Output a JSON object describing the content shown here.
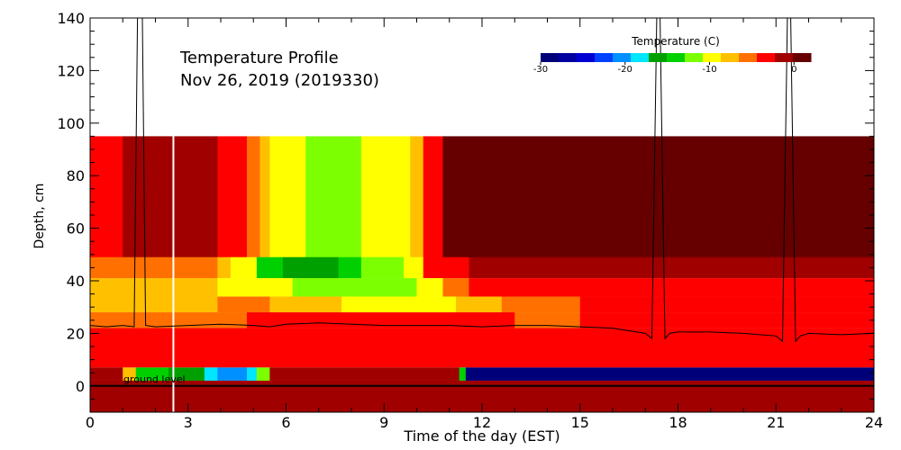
{
  "chart_data": {
    "type": "heatmap",
    "title": "Temperature Profile",
    "subtitle": "Nov 26, 2019 (2019330)",
    "xlabel": "Time of the day (EST)",
    "ylabel": "Depth, cm",
    "xlim": [
      0,
      24
    ],
    "ylim": [
      -10,
      140
    ],
    "x_ticks": [
      0,
      3,
      6,
      9,
      12,
      15,
      18,
      21,
      24
    ],
    "y_ticks": [
      0,
      20,
      40,
      60,
      80,
      100,
      120,
      140
    ],
    "annotation": "ground level",
    "colorbar": {
      "label": "Temperature (C)",
      "range": [
        -30,
        2
      ],
      "ticks": [
        -30,
        -20,
        -10,
        0
      ],
      "colors": [
        "#00007a",
        "#0000a0",
        "#0000d2",
        "#0040ff",
        "#0090ff",
        "#00e6ff",
        "#00a000",
        "#00d000",
        "#7cff00",
        "#ffff00",
        "#ffc000",
        "#ff7000",
        "#ff0000",
        "#a00000",
        "#660000"
      ]
    },
    "bands": [
      {
        "depth": [
          41,
          95
        ],
        "segments": [
          {
            "t": [
              0,
              1.0
            ],
            "c": "#ff0000"
          },
          {
            "t": [
              1.0,
              3.9
            ],
            "c": "#a00000"
          },
          {
            "t": [
              3.9,
              4.8
            ],
            "c": "#ff0000"
          },
          {
            "t": [
              4.8,
              5.2
            ],
            "c": "#ff7000"
          },
          {
            "t": [
              5.2,
              5.5
            ],
            "c": "#ffc000"
          },
          {
            "t": [
              5.5,
              6.6
            ],
            "c": "#ffff00"
          },
          {
            "t": [
              6.6,
              8.3
            ],
            "c": "#7cff00"
          },
          {
            "t": [
              8.3,
              9.8
            ],
            "c": "#ffff00"
          },
          {
            "t": [
              9.8,
              10.2
            ],
            "c": "#ffc000"
          },
          {
            "t": [
              10.2,
              10.8
            ],
            "c": "#ff0000"
          },
          {
            "t": [
              10.8,
              24
            ],
            "c": "#660000"
          }
        ]
      },
      {
        "depth": [
          41,
          49
        ],
        "segments": [
          {
            "t": [
              0,
              3.9
            ],
            "c": "#ff7000"
          },
          {
            "t": [
              3.9,
              4.3
            ],
            "c": "#ffc000"
          },
          {
            "t": [
              4.3,
              5.1
            ],
            "c": "#ffff00"
          },
          {
            "t": [
              5.1,
              5.9
            ],
            "c": "#00d000"
          },
          {
            "t": [
              5.9,
              7.6
            ],
            "c": "#00a000"
          },
          {
            "t": [
              7.6,
              8.3
            ],
            "c": "#00d000"
          },
          {
            "t": [
              8.3,
              9.6
            ],
            "c": "#7cff00"
          },
          {
            "t": [
              9.6,
              10.2
            ],
            "c": "#ffff00"
          },
          {
            "t": [
              10.2,
              11.6
            ],
            "c": "#ff0000"
          },
          {
            "t": [
              11.6,
              24
            ],
            "c": "#a00000"
          }
        ]
      },
      {
        "depth": [
          34,
          41
        ],
        "segments": [
          {
            "t": [
              0,
              3.9
            ],
            "c": "#ffc000"
          },
          {
            "t": [
              3.9,
              6.2
            ],
            "c": "#ffff00"
          },
          {
            "t": [
              6.2,
              10.0
            ],
            "c": "#7cff00"
          },
          {
            "t": [
              10.0,
              10.8
            ],
            "c": "#ffff00"
          },
          {
            "t": [
              10.8,
              11.6
            ],
            "c": "#ff7000"
          },
          {
            "t": [
              11.6,
              24
            ],
            "c": "#ff0000"
          }
        ]
      },
      {
        "depth": [
          28,
          34
        ],
        "segments": [
          {
            "t": [
              0,
              3.9
            ],
            "c": "#ffc000"
          },
          {
            "t": [
              3.9,
              5.5
            ],
            "c": "#ff7000"
          },
          {
            "t": [
              5.5,
              7.7
            ],
            "c": "#ffc000"
          },
          {
            "t": [
              7.7,
              11.2
            ],
            "c": "#ffff00"
          },
          {
            "t": [
              11.2,
              12.6
            ],
            "c": "#ffc000"
          },
          {
            "t": [
              12.6,
              15.0
            ],
            "c": "#ff7000"
          },
          {
            "t": [
              15.0,
              24
            ],
            "c": "#ff0000"
          }
        ]
      },
      {
        "depth": [
          22,
          28
        ],
        "segments": [
          {
            "t": [
              0,
              4.8
            ],
            "c": "#ff7000"
          },
          {
            "t": [
              4.8,
              13.0
            ],
            "c": "#ff0000"
          },
          {
            "t": [
              13.0,
              15.0
            ],
            "c": "#ff7000"
          },
          {
            "t": [
              15.0,
              24
            ],
            "c": "#ff0000"
          }
        ]
      },
      {
        "depth": [
          7,
          22
        ],
        "segments": [
          {
            "t": [
              0,
              24
            ],
            "c": "#ff0000"
          }
        ]
      },
      {
        "depth": [
          2,
          7
        ],
        "segments": [
          {
            "t": [
              0,
              1.0
            ],
            "c": "#a00000"
          },
          {
            "t": [
              1.0,
              1.4
            ],
            "c": "#ffc000"
          },
          {
            "t": [
              1.4,
              2.4
            ],
            "c": "#00d000"
          },
          {
            "t": [
              2.4,
              3.5
            ],
            "c": "#00a000"
          },
          {
            "t": [
              3.5,
              3.9
            ],
            "c": "#00e6ff"
          },
          {
            "t": [
              3.9,
              4.8
            ],
            "c": "#0090ff"
          },
          {
            "t": [
              4.8,
              5.1
            ],
            "c": "#00e6ff"
          },
          {
            "t": [
              5.1,
              5.5
            ],
            "c": "#7cff00"
          },
          {
            "t": [
              5.5,
              11.3
            ],
            "c": "#a00000"
          },
          {
            "t": [
              11.3,
              11.5
            ],
            "c": "#00d000"
          },
          {
            "t": [
              11.5,
              24
            ],
            "c": "#00007a"
          }
        ]
      },
      {
        "depth": [
          -10,
          2
        ],
        "segments": [
          {
            "t": [
              0,
              24
            ],
            "c": "#a00000"
          }
        ]
      }
    ],
    "white_marker_x": 2.55,
    "line_series": {
      "x": [
        0,
        0.5,
        1.0,
        1.35,
        1.45,
        1.6,
        1.7,
        2.0,
        3.0,
        4.0,
        5.0,
        5.5,
        6.0,
        7.0,
        8.0,
        9.0,
        10.0,
        11.0,
        12.0,
        13.0,
        14.0,
        15.0,
        16.0,
        17.0,
        17.2,
        17.35,
        17.45,
        17.6,
        17.75,
        18.0,
        19.0,
        20.0,
        21.0,
        21.2,
        21.35,
        21.45,
        21.6,
        21.75,
        22.0,
        23.0,
        24.0
      ],
      "y": [
        23,
        22.5,
        23,
        22.5,
        140,
        140,
        23,
        22.5,
        23,
        23.5,
        23,
        22.5,
        23.5,
        24,
        23.5,
        23,
        23,
        23,
        22.5,
        23,
        23,
        22.5,
        22,
        20,
        18,
        140,
        140,
        18,
        20,
        20.5,
        20.5,
        20,
        19,
        17,
        140,
        140,
        17,
        19,
        20,
        19.5,
        20
      ]
    }
  }
}
